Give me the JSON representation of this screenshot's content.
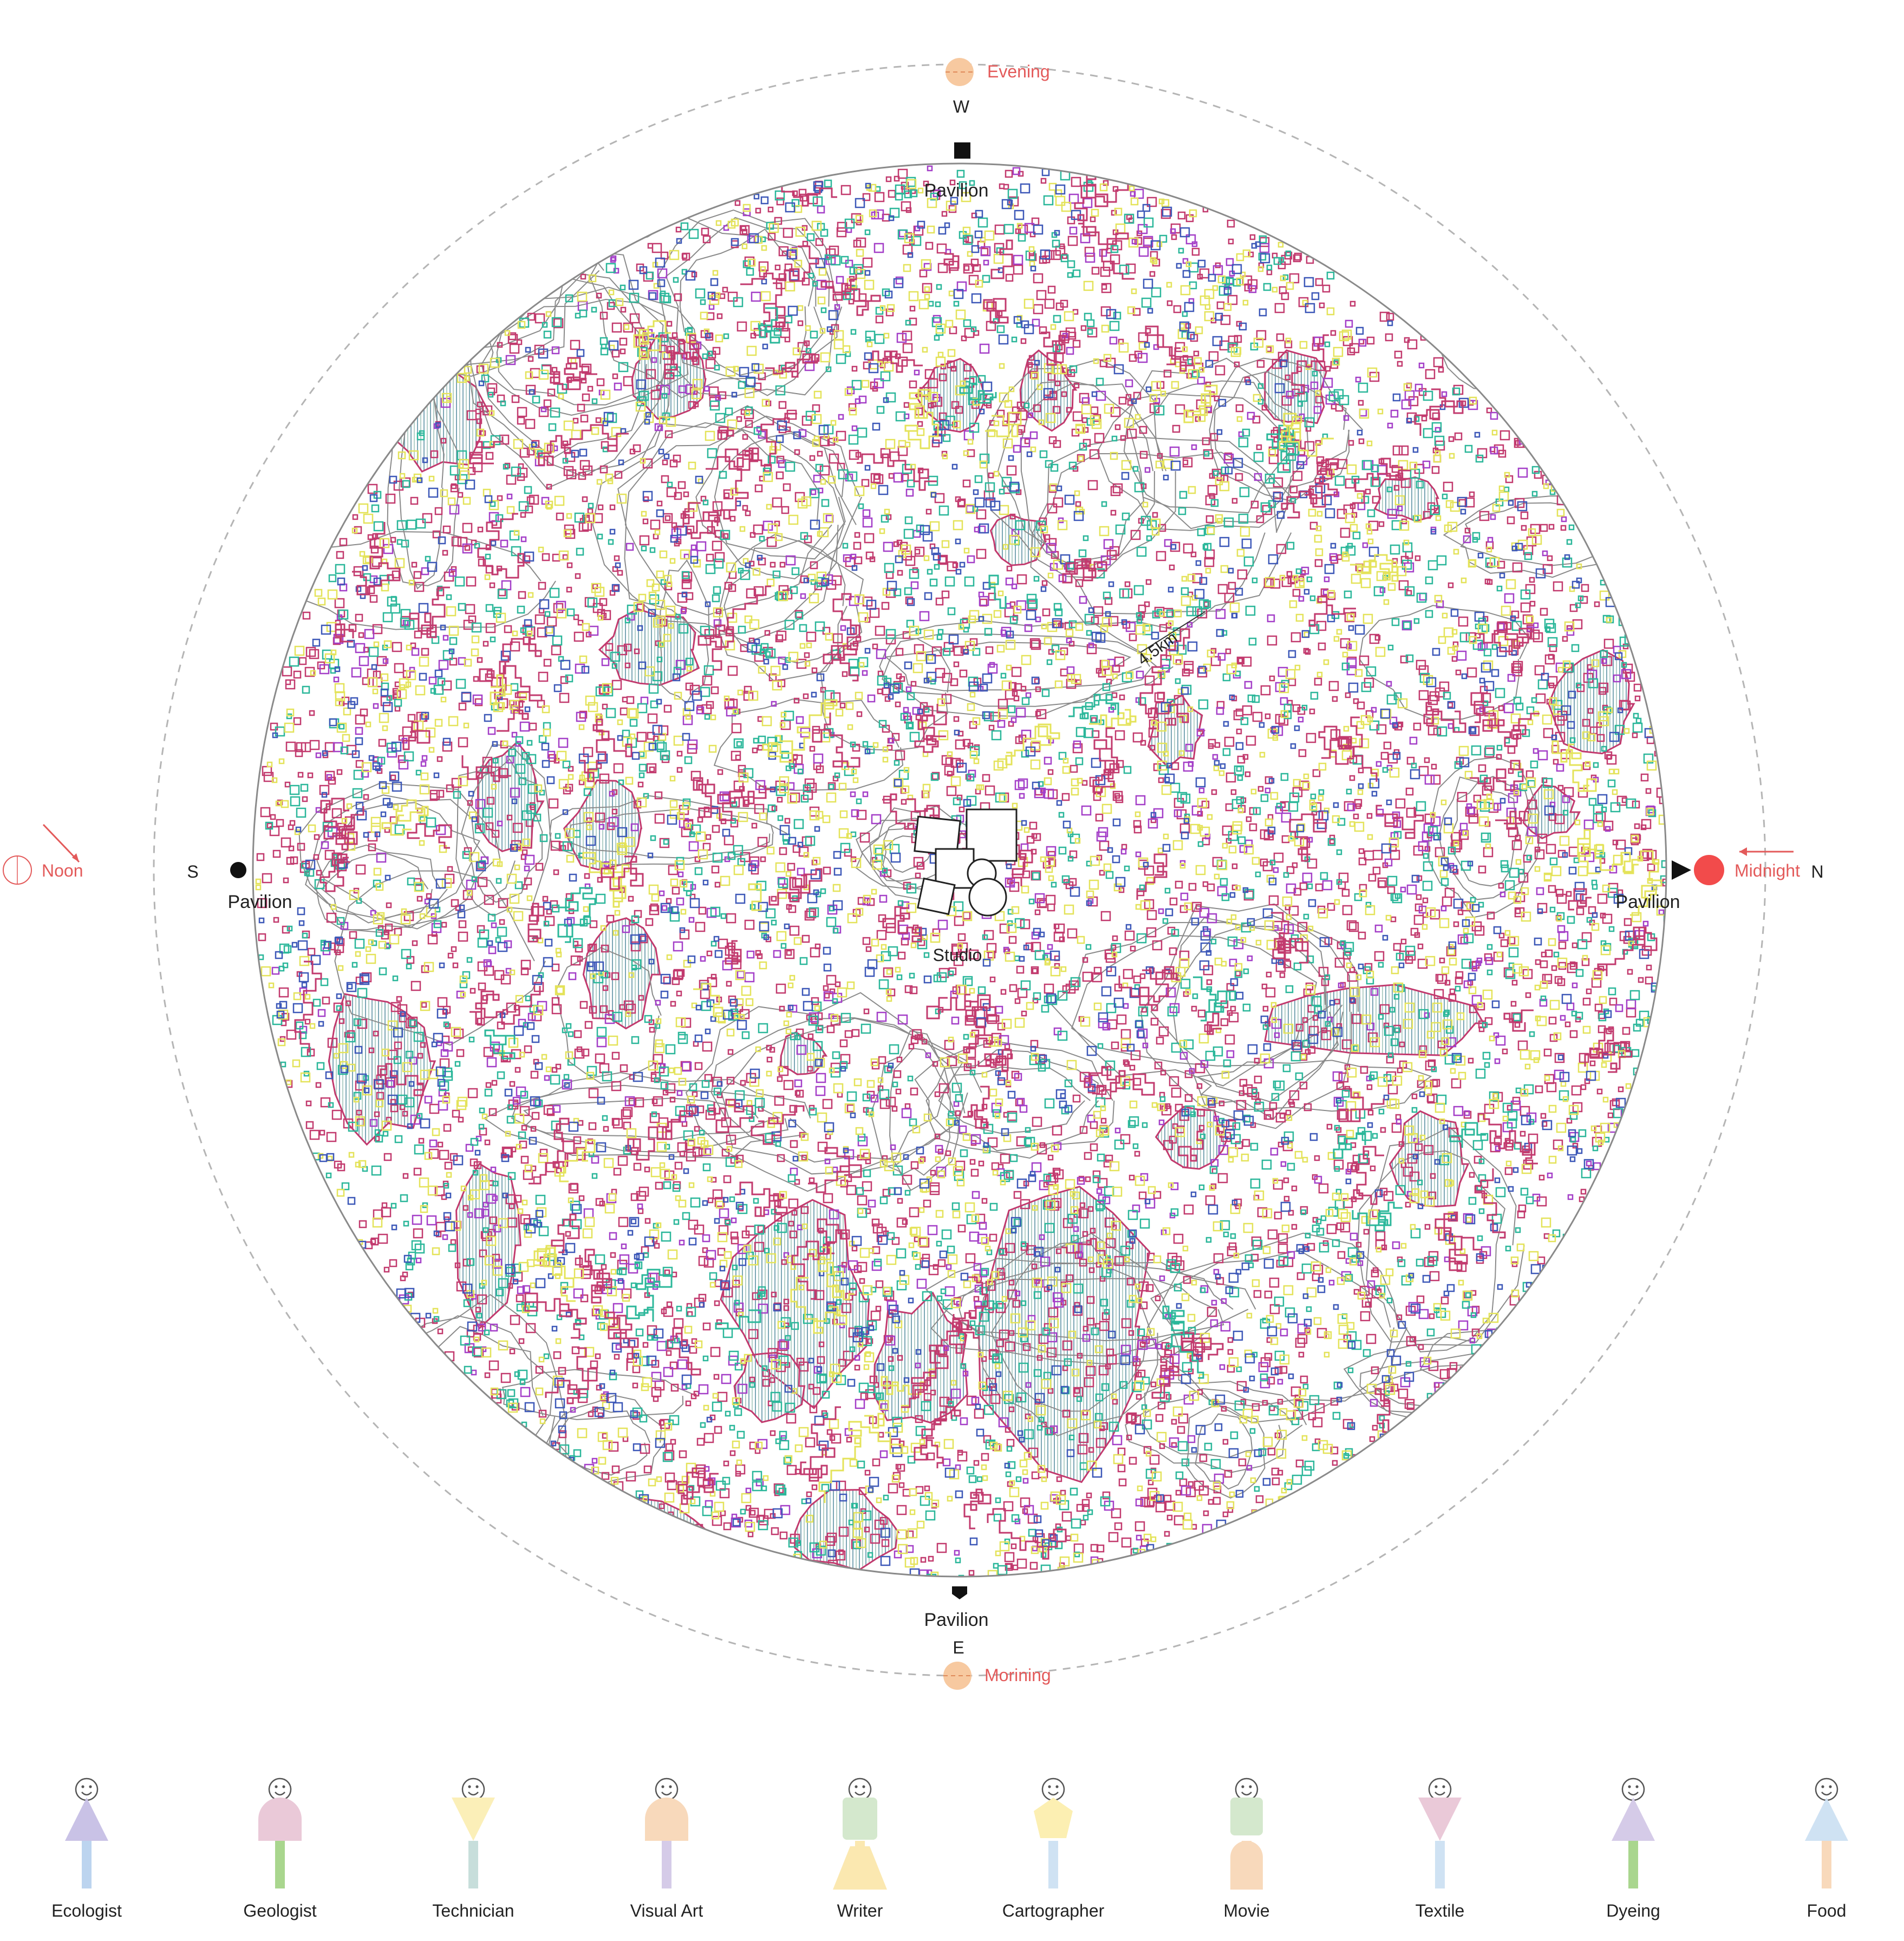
{
  "compass": {
    "west": "W",
    "east": "E",
    "south": "S",
    "north": "N"
  },
  "sun": {
    "evening": "Evening",
    "morning": "Morining",
    "noon": "Noon",
    "midnight": "Midnight"
  },
  "places": {
    "pavilion_top": "Pavilion",
    "pavilion_bottom": "Pavilion",
    "pavilion_left": "Pavilion",
    "pavilion_right": "Pavilion",
    "studio": "Studio"
  },
  "scale_label": "4.5km",
  "colors": {
    "contour": "#8a8a8a",
    "magenta": "#c23a6e",
    "purple": "#a43fc8",
    "teal": "#2bb79a",
    "yellow": "#e4e35a",
    "blue": "#3d58b8",
    "hatch": "#7ba6b5",
    "accent_red": "#e35a5a",
    "sun_orange": "#f7c9a0",
    "midnight_red": "#f24b4b"
  },
  "legend": [
    {
      "label": "Ecologist",
      "top_shape": "triangle-up",
      "top_color": "#c9c2e6",
      "stem_color": "#bcd4ef"
    },
    {
      "label": "Geologist",
      "top_shape": "dome",
      "top_color": "#eac9d8",
      "stem_color": "#a9d68e"
    },
    {
      "label": "Technician",
      "top_shape": "triangle-down",
      "top_color": "#fbefb8",
      "stem_color": "#c7dedb"
    },
    {
      "label": "Visual Art",
      "top_shape": "dome",
      "top_color": "#f8d9bb",
      "stem_color": "#d5cbe8"
    },
    {
      "label": "Writer",
      "top_shape": "rect-trapezoid",
      "top_color": "#d4e8cd",
      "stem_color": "#fbe8b0"
    },
    {
      "label": "Cartographer",
      "top_shape": "pentagon",
      "top_color": "#fcefb2",
      "stem_color": "#cfe2f3"
    },
    {
      "label": "Movie",
      "top_shape": "rect-dome",
      "top_color": "#d4e8cd",
      "stem_color": "#f8d9bb"
    },
    {
      "label": "Textile",
      "top_shape": "triangle-down",
      "top_color": "#eac9d8",
      "stem_color": "#cfe2f3"
    },
    {
      "label": "Dyeing",
      "top_shape": "triangle-up",
      "top_color": "#d5cbe8",
      "stem_color": "#a9d68e"
    },
    {
      "label": "Food",
      "top_shape": "triangle-up",
      "top_color": "#cfe2f3",
      "stem_color": "#f8d9bb"
    }
  ]
}
